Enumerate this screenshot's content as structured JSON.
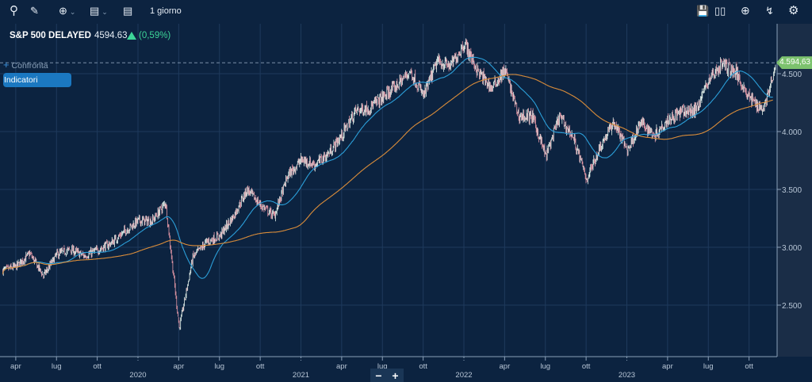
{
  "toolbar": {
    "interval": "1 giorno",
    "icons_left": [
      "search-icon",
      "pencil-icon",
      "crosshair-icon",
      "annotation-icon",
      "list-icon"
    ],
    "icons_right": [
      "save-icon",
      "candlestick-icon",
      "add-icon",
      "lightning-icon",
      "gear-icon"
    ]
  },
  "header": {
    "title": "S&P 500 DELAYED",
    "price": "4594.63",
    "change": "(0,59%)"
  },
  "compare_label": "Confronta",
  "indicators_label": "Indicatori",
  "last_price_tag": "4.594,63",
  "zoom": {
    "minus": "−",
    "plus": "+"
  },
  "colors": {
    "background": "#0c2340",
    "up": "#e8f5ee",
    "down": "#e89aa8",
    "ma_short": "#2b9ed8",
    "ma_long": "#d98c3a",
    "positive": "#3dd598"
  },
  "chart_data": {
    "type": "candlestick",
    "y_ticks": [
      {
        "v": 4500,
        "label": "4.500"
      },
      {
        "v": 4000,
        "label": "4.000"
      },
      {
        "v": 3500,
        "label": "3.500"
      },
      {
        "v": 3000,
        "label": "3.000"
      },
      {
        "v": 2500,
        "label": "2.500"
      }
    ],
    "x_ticks": [
      {
        "t": 2019.25,
        "label": "apr"
      },
      {
        "t": 2019.5,
        "label": "lug"
      },
      {
        "t": 2019.75,
        "label": "ott"
      },
      {
        "t": 2020,
        "label": "2020",
        "year": true
      },
      {
        "t": 2020.25,
        "label": "apr"
      },
      {
        "t": 2020.5,
        "label": "lug"
      },
      {
        "t": 2020.75,
        "label": "ott"
      },
      {
        "t": 2021,
        "label": "2021",
        "year": true
      },
      {
        "t": 2021.25,
        "label": "apr"
      },
      {
        "t": 2021.5,
        "label": "lug"
      },
      {
        "t": 2021.75,
        "label": "ott"
      },
      {
        "t": 2022,
        "label": "2022",
        "year": true
      },
      {
        "t": 2022.25,
        "label": "apr"
      },
      {
        "t": 2022.5,
        "label": "lug"
      },
      {
        "t": 2022.75,
        "label": "ott"
      },
      {
        "t": 2023,
        "label": "2023",
        "year": true
      },
      {
        "t": 2023.25,
        "label": "apr"
      },
      {
        "t": 2023.5,
        "label": "lug"
      },
      {
        "t": 2023.75,
        "label": "ott"
      }
    ],
    "monthly_start": 2019.17,
    "monthly_closes": [
      2800,
      2834,
      2945,
      2752,
      2941,
      2980,
      2926,
      2976,
      3037,
      3140,
      3230,
      3225,
      3386,
      2300,
      2912,
      3044,
      3100,
      3271,
      3500,
      3363,
      3270,
      3621,
      3756,
      3714,
      3811,
      3973,
      4181,
      4204,
      4297,
      4395,
      4523,
      4307,
      4605,
      4567,
      4766,
      4516,
      4374,
      4530,
      4132,
      4132,
      3785,
      4130,
      3955,
      3586,
      3872,
      4080,
      3840,
      4077,
      3970,
      4109,
      4169,
      4180,
      4450,
      4589,
      4508,
      4288,
      4194,
      4568,
      4594.63
    ],
    "ma_short_days": 50,
    "ma_long_days": 200,
    "last_value": 4594.63
  }
}
